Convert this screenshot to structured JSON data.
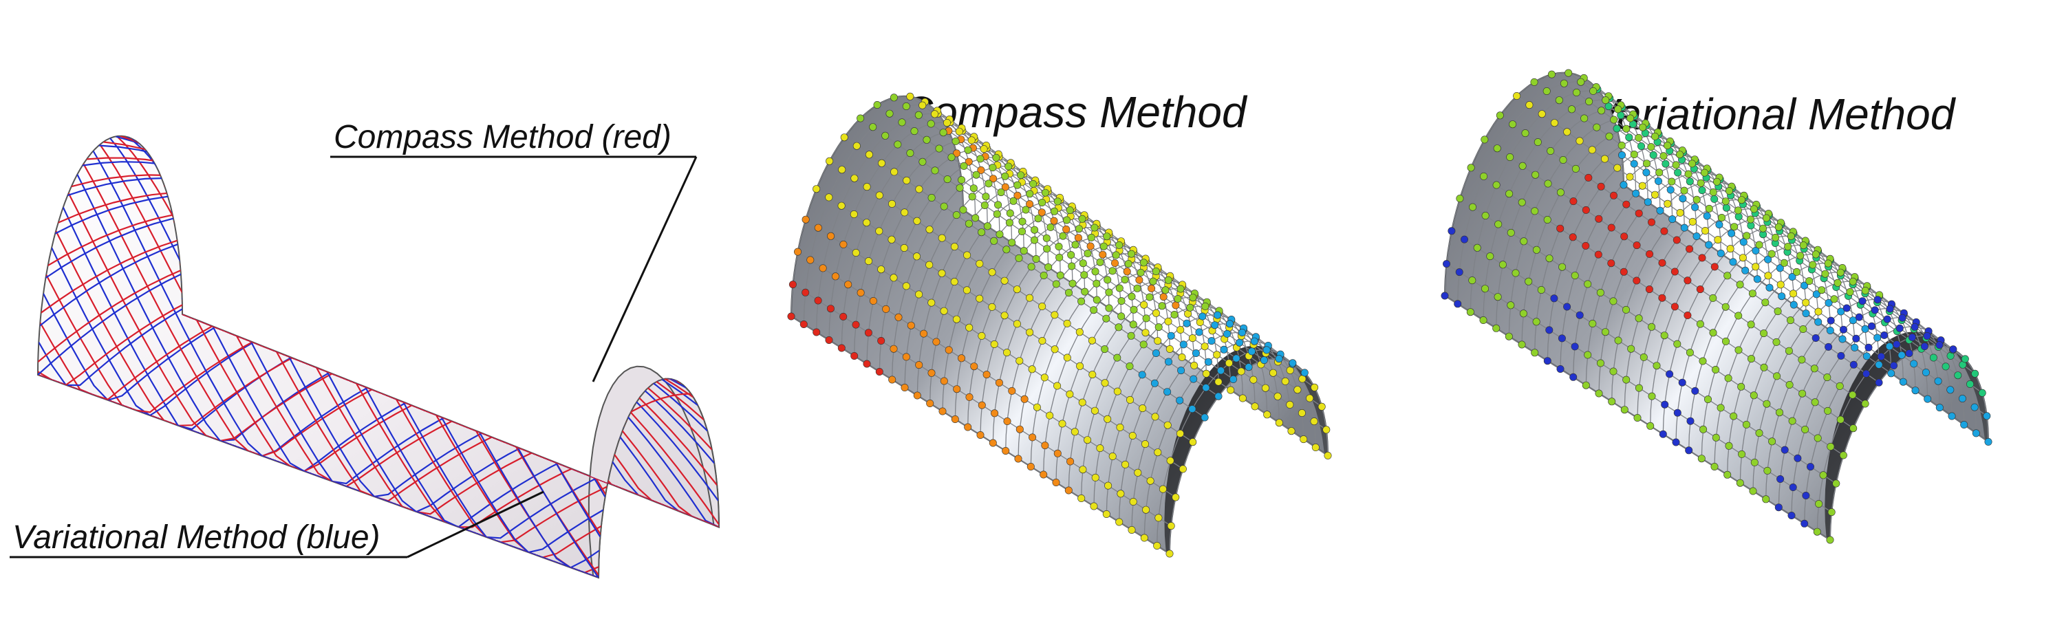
{
  "labels": {
    "compass_red": "Compass Method (red)",
    "variational_blue": "Variational Method (blue)",
    "compass_title": "Compass Method",
    "variational_title": "Variational Method"
  },
  "colors": {
    "compass_curves": "#d81e2c",
    "variational_curves": "#1f2fd0",
    "surface_light": "#f4f1f4",
    "surface_shade": "#cfc9cf",
    "mesh_grey": "#7f8288",
    "mesh_highlight": "#eef2f8",
    "edge_green": "#22b14c",
    "leader": "#111111"
  },
  "dot_palette": [
    "#2233cc",
    "#1aa3e0",
    "#22c87a",
    "#8fd12a",
    "#e8e21a",
    "#f28a16",
    "#e0281c"
  ]
}
